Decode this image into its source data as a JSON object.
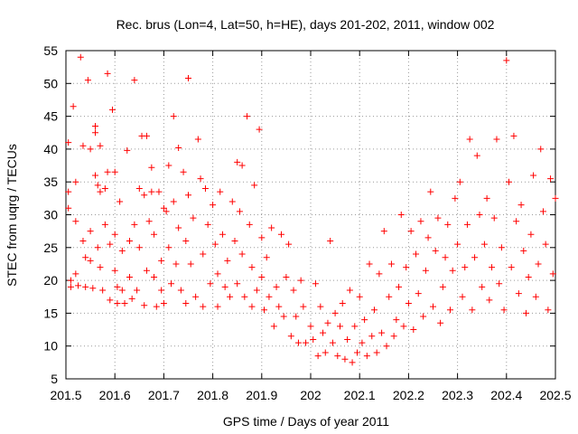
{
  "chart_data": {
    "type": "scatter",
    "title": "Rec. brus (Lon=4, Lat=50, h=HE), days 201-202, 2011, window 002",
    "xlabel": "GPS time / Days of year 2011",
    "ylabel": "STEC from uqrg / TECUs",
    "xlim": [
      201.5,
      202.5
    ],
    "ylim": [
      5,
      55
    ],
    "xticks": [
      "201.5",
      "201.6",
      "201.7",
      "201.8",
      "201.9",
      "202",
      "202.1",
      "202.2",
      "202.3",
      "202.4",
      "202.5"
    ],
    "yticks": [
      "5",
      "10",
      "15",
      "20",
      "25",
      "30",
      "35",
      "40",
      "45",
      "50",
      "55"
    ],
    "grid": true,
    "marker": "+",
    "marker_color": "#ff0000",
    "points": [
      [
        201.505,
        41
      ],
      [
        201.505,
        33.5
      ],
      [
        201.505,
        31
      ],
      [
        201.51,
        20
      ],
      [
        201.51,
        19
      ],
      [
        201.515,
        46.5
      ],
      [
        201.52,
        35
      ],
      [
        201.52,
        29
      ],
      [
        201.52,
        21
      ],
      [
        201.525,
        19.2
      ],
      [
        201.53,
        54
      ],
      [
        201.535,
        40.5
      ],
      [
        201.535,
        26
      ],
      [
        201.54,
        23.5
      ],
      [
        201.54,
        19
      ],
      [
        201.545,
        50.5
      ],
      [
        201.55,
        40
      ],
      [
        201.55,
        27.5
      ],
      [
        201.55,
        23
      ],
      [
        201.555,
        18.8
      ],
      [
        201.56,
        43.5
      ],
      [
        201.56,
        42.5
      ],
      [
        201.56,
        36
      ],
      [
        201.565,
        34.5
      ],
      [
        201.565,
        25
      ],
      [
        201.57,
        40.5
      ],
      [
        201.57,
        33.5
      ],
      [
        201.57,
        22
      ],
      [
        201.575,
        18.5
      ],
      [
        201.58,
        34
      ],
      [
        201.58,
        28.5
      ],
      [
        201.585,
        51.5
      ],
      [
        201.585,
        36.5
      ],
      [
        201.59,
        25.5
      ],
      [
        201.59,
        17
      ],
      [
        201.595,
        46
      ],
      [
        201.6,
        36.5
      ],
      [
        201.6,
        27
      ],
      [
        201.6,
        21.5
      ],
      [
        201.605,
        19
      ],
      [
        201.605,
        16.5
      ],
      [
        201.61,
        32
      ],
      [
        201.615,
        24.5
      ],
      [
        201.615,
        18.5
      ],
      [
        201.62,
        16.5
      ],
      [
        201.625,
        39.8
      ],
      [
        201.63,
        26
      ],
      [
        201.63,
        20.5
      ],
      [
        201.635,
        17.2
      ],
      [
        201.64,
        50.5
      ],
      [
        201.64,
        28.5
      ],
      [
        201.645,
        18.5
      ],
      [
        201.65,
        34
      ],
      [
        201.65,
        25
      ],
      [
        201.655,
        42
      ],
      [
        201.66,
        33
      ],
      [
        201.66,
        16.2
      ],
      [
        201.665,
        42
      ],
      [
        201.665,
        21.5
      ],
      [
        201.67,
        29
      ],
      [
        201.675,
        37.2
      ],
      [
        201.675,
        33.5
      ],
      [
        201.68,
        27
      ],
      [
        201.68,
        20.5
      ],
      [
        201.685,
        16
      ],
      [
        201.69,
        33.5
      ],
      [
        201.695,
        23
      ],
      [
        201.695,
        18.5
      ],
      [
        201.7,
        31
      ],
      [
        201.7,
        16.5
      ],
      [
        201.705,
        30.5
      ],
      [
        201.71,
        37.5
      ],
      [
        201.71,
        25
      ],
      [
        201.715,
        19.5
      ],
      [
        201.72,
        45
      ],
      [
        201.72,
        32
      ],
      [
        201.725,
        22.5
      ],
      [
        201.73,
        40.2
      ],
      [
        201.73,
        28
      ],
      [
        201.735,
        18.5
      ],
      [
        201.74,
        36.5
      ],
      [
        201.745,
        26
      ],
      [
        201.745,
        16.5
      ],
      [
        201.75,
        50.8
      ],
      [
        201.75,
        33
      ],
      [
        201.755,
        22.5
      ],
      [
        201.76,
        29.5
      ],
      [
        201.765,
        17.5
      ],
      [
        201.77,
        41.5
      ],
      [
        201.775,
        35.5
      ],
      [
        201.78,
        24
      ],
      [
        201.78,
        16
      ],
      [
        201.785,
        34
      ],
      [
        201.79,
        28.5
      ],
      [
        201.795,
        19.5
      ],
      [
        201.8,
        31.5
      ],
      [
        201.805,
        25.5
      ],
      [
        201.81,
        21
      ],
      [
        201.81,
        16
      ],
      [
        201.815,
        33.5
      ],
      [
        201.82,
        27
      ],
      [
        201.825,
        19
      ],
      [
        201.83,
        23
      ],
      [
        201.835,
        17.5
      ],
      [
        201.84,
        32
      ],
      [
        201.845,
        26
      ],
      [
        201.85,
        38
      ],
      [
        201.85,
        19.5
      ],
      [
        201.855,
        30.5
      ],
      [
        201.86,
        37.5
      ],
      [
        201.86,
        24
      ],
      [
        201.865,
        17.5
      ],
      [
        201.87,
        45
      ],
      [
        201.875,
        28.5
      ],
      [
        201.88,
        22
      ],
      [
        201.88,
        16
      ],
      [
        201.885,
        34.5
      ],
      [
        201.89,
        18.5
      ],
      [
        201.895,
        43
      ],
      [
        201.9,
        26.5
      ],
      [
        201.9,
        20.5
      ],
      [
        201.905,
        15.5
      ],
      [
        201.91,
        23.5
      ],
      [
        201.915,
        17.5
      ],
      [
        201.92,
        28
      ],
      [
        201.925,
        13
      ],
      [
        201.93,
        19
      ],
      [
        201.935,
        16
      ],
      [
        201.94,
        27
      ],
      [
        201.945,
        14.5
      ],
      [
        201.95,
        20.5
      ],
      [
        201.955,
        25.5
      ],
      [
        201.96,
        11.5
      ],
      [
        201.965,
        18.5
      ],
      [
        201.97,
        14.5
      ],
      [
        201.975,
        10.5
      ],
      [
        201.98,
        20
      ],
      [
        201.985,
        16
      ],
      [
        201.99,
        10.5
      ],
      [
        202.0,
        13
      ],
      [
        202.005,
        11
      ],
      [
        202.01,
        19.5
      ],
      [
        202.015,
        8.5
      ],
      [
        202.02,
        16
      ],
      [
        202.025,
        12
      ],
      [
        202.03,
        9
      ],
      [
        202.035,
        13.5
      ],
      [
        202.04,
        26
      ],
      [
        202.045,
        10.5
      ],
      [
        202.05,
        15
      ],
      [
        202.055,
        8.5
      ],
      [
        202.06,
        13
      ],
      [
        202.065,
        16.5
      ],
      [
        202.07,
        8
      ],
      [
        202.075,
        11
      ],
      [
        202.08,
        18.5
      ],
      [
        202.085,
        7.5
      ],
      [
        202.09,
        13
      ],
      [
        202.095,
        9
      ],
      [
        202.1,
        17.5
      ],
      [
        202.105,
        10.5
      ],
      [
        202.11,
        14
      ],
      [
        202.115,
        8.5
      ],
      [
        202.12,
        22.5
      ],
      [
        202.125,
        11.5
      ],
      [
        202.13,
        15.5
      ],
      [
        202.135,
        9
      ],
      [
        202.14,
        21
      ],
      [
        202.145,
        12
      ],
      [
        202.15,
        27.5
      ],
      [
        202.155,
        10
      ],
      [
        202.16,
        17.5
      ],
      [
        202.165,
        22.5
      ],
      [
        202.17,
        11.5
      ],
      [
        202.175,
        14
      ],
      [
        202.18,
        19
      ],
      [
        202.185,
        30
      ],
      [
        202.19,
        13
      ],
      [
        202.195,
        22
      ],
      [
        202.2,
        16.5
      ],
      [
        202.205,
        27.5
      ],
      [
        202.21,
        12.5
      ],
      [
        202.215,
        24
      ],
      [
        202.22,
        18
      ],
      [
        202.225,
        29
      ],
      [
        202.23,
        14.5
      ],
      [
        202.235,
        21.5
      ],
      [
        202.24,
        26.5
      ],
      [
        202.245,
        33.5
      ],
      [
        202.25,
        16
      ],
      [
        202.255,
        24.5
      ],
      [
        202.26,
        29.5
      ],
      [
        202.265,
        13.5
      ],
      [
        202.27,
        19
      ],
      [
        202.275,
        23.5
      ],
      [
        202.28,
        28.5
      ],
      [
        202.285,
        15.5
      ],
      [
        202.29,
        21.5
      ],
      [
        202.295,
        32.5
      ],
      [
        202.3,
        25.5
      ],
      [
        202.305,
        35
      ],
      [
        202.31,
        17.5
      ],
      [
        202.315,
        22
      ],
      [
        202.32,
        28.5
      ],
      [
        202.325,
        41.5
      ],
      [
        202.33,
        15.5
      ],
      [
        202.335,
        23.5
      ],
      [
        202.34,
        39
      ],
      [
        202.345,
        30
      ],
      [
        202.35,
        19
      ],
      [
        202.355,
        25.5
      ],
      [
        202.36,
        32.5
      ],
      [
        202.365,
        17
      ],
      [
        202.37,
        22
      ],
      [
        202.375,
        29.5
      ],
      [
        202.38,
        41.5
      ],
      [
        202.385,
        19.5
      ],
      [
        202.39,
        25
      ],
      [
        202.395,
        15.5
      ],
      [
        202.4,
        53.5
      ],
      [
        202.405,
        35
      ],
      [
        202.41,
        22
      ],
      [
        202.415,
        42
      ],
      [
        202.42,
        29
      ],
      [
        202.425,
        18
      ],
      [
        202.43,
        31.5
      ],
      [
        202.435,
        24.5
      ],
      [
        202.44,
        15
      ],
      [
        202.445,
        20.5
      ],
      [
        202.45,
        27
      ],
      [
        202.455,
        36
      ],
      [
        202.46,
        17.5
      ],
      [
        202.465,
        22.5
      ],
      [
        202.47,
        40
      ],
      [
        202.475,
        30.5
      ],
      [
        202.48,
        25.5
      ],
      [
        202.485,
        15.5
      ],
      [
        202.49,
        35.5
      ],
      [
        202.495,
        21
      ],
      [
        202.5,
        32.5
      ]
    ]
  }
}
